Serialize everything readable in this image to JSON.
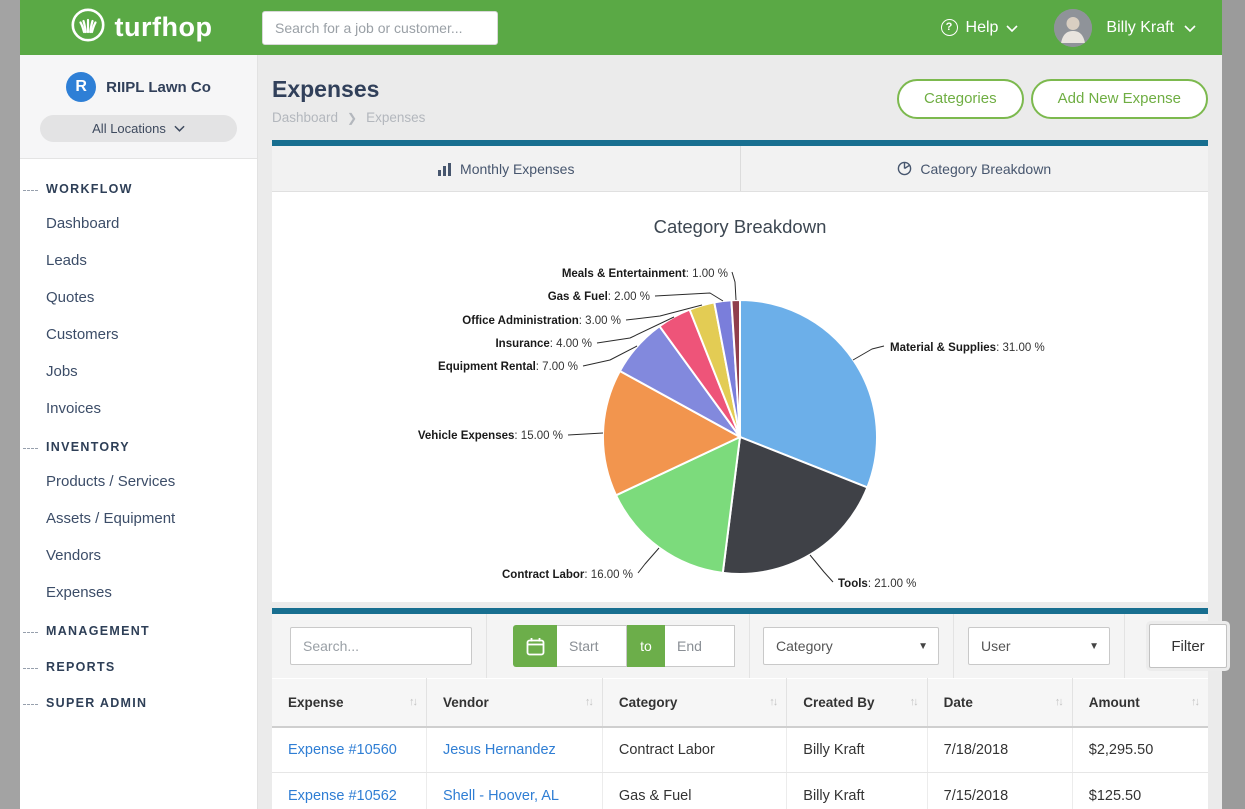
{
  "brand": {
    "name": "turfhop",
    "color_green": "#5aa945",
    "color_teal": "#186f90",
    "link_blue": "#2f7ed4"
  },
  "header": {
    "search_placeholder": "Search for a job or customer...",
    "help_label": "Help",
    "user_name": "Billy Kraft"
  },
  "sidebar": {
    "company_initial": "R",
    "company_name": "RIIPL Lawn Co",
    "location_selector": "All Locations",
    "sections": [
      {
        "label": "WORKFLOW",
        "items": [
          "Dashboard",
          "Leads",
          "Quotes",
          "Customers",
          "Jobs",
          "Invoices"
        ]
      },
      {
        "label": "INVENTORY",
        "items": [
          "Products / Services",
          "Assets / Equipment",
          "Vendors",
          "Expenses"
        ]
      },
      {
        "label": "MANAGEMENT",
        "items": []
      },
      {
        "label": "REPORTS",
        "items": []
      },
      {
        "label": "SUPER ADMIN",
        "items": []
      }
    ]
  },
  "page": {
    "title": "Expenses",
    "breadcrumb": [
      "Dashboard",
      "Expenses"
    ],
    "actions": {
      "categories": "Categories",
      "add_new": "Add New Expense"
    }
  },
  "tabs": [
    {
      "label": "Monthly Expenses",
      "icon": "bar-chart-icon",
      "active": false
    },
    {
      "label": "Category Breakdown",
      "icon": "pie-chart-icon",
      "active": true
    }
  ],
  "chart_data": {
    "type": "pie",
    "title": "Category Breakdown",
    "categories": [
      "Material & Supplies",
      "Tools",
      "Contract Labor",
      "Vehicle Expenses",
      "Equipment Rental",
      "Insurance",
      "Office Administration",
      "Gas & Fuel",
      "Meals & Entertainment"
    ],
    "values": [
      31,
      21,
      16,
      15,
      7,
      4,
      3,
      2,
      1
    ],
    "colors": [
      "#6cafe9",
      "#3f4147",
      "#7cdb7c",
      "#f2954e",
      "#8289dd",
      "#ee5479",
      "#e3cc54",
      "#7a7edb",
      "#903f4d"
    ],
    "label_suffix": " %",
    "value_decimals": 2,
    "legend": "none",
    "start_angle_deg": 0,
    "direction": "clockwise"
  },
  "filters": {
    "search_placeholder": "Search...",
    "date_start_placeholder": "Start",
    "date_joiner": "to",
    "date_end_placeholder": "End",
    "category_select": "Category",
    "user_select": "User",
    "filter_button": "Filter"
  },
  "table": {
    "columns": [
      "Expense",
      "Vendor",
      "Category",
      "Created By",
      "Date",
      "Amount"
    ],
    "col_widths_pct": [
      16.5,
      18.8,
      19.7,
      15.0,
      15.5,
      14.5
    ],
    "link_columns": [
      0,
      1
    ],
    "rows": [
      [
        "Expense #10560",
        "Jesus Hernandez",
        "Contract Labor",
        "Billy Kraft",
        "7/18/2018",
        "$2,295.50"
      ],
      [
        "Expense #10562",
        "Shell - Hoover, AL",
        "Gas & Fuel",
        "Billy Kraft",
        "7/15/2018",
        "$125.50"
      ]
    ]
  }
}
